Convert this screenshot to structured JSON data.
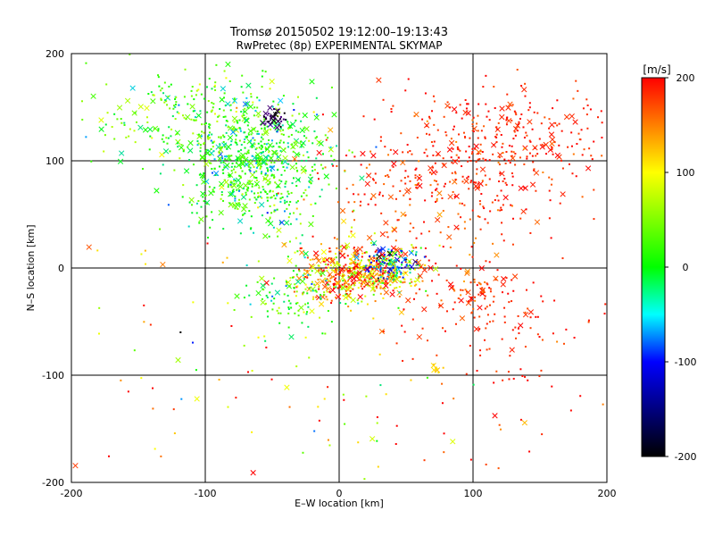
{
  "chart_data": {
    "type": "scatter",
    "title": "Tromsø 20150502 19:12:00–19:13:43",
    "subtitle": "RwPretec (8p) EXPERIMENTAL SKYMAP",
    "xlabel": "E–W location [km]",
    "ylabel": "N–S location [km]",
    "xlim": [
      -200,
      200
    ],
    "ylim": [
      -200,
      200
    ],
    "x_ticks": [
      -200,
      -100,
      0,
      100,
      200
    ],
    "y_ticks": [
      -200,
      -100,
      0,
      100,
      200
    ],
    "grid": true,
    "colorbar": {
      "label": "[m/s]",
      "range": [
        -200,
        200
      ],
      "ticks": [
        200,
        100,
        0,
        -100,
        -200
      ],
      "colors": [
        "#ff0000",
        "#ffff00",
        "#00ff00",
        "#00ffff",
        "#0000ff",
        "#000000"
      ]
    },
    "marker_types": [
      "dot",
      "cross"
    ],
    "clusters": [
      {
        "center": [
          -65,
          95
        ],
        "spread": [
          28,
          30
        ],
        "count": 650,
        "velocity_mean": 10,
        "velocity_spread": 35
      },
      {
        "center": [
          -110,
          140
        ],
        "spread": [
          40,
          22
        ],
        "count": 260,
        "velocity_mean": 25,
        "velocity_spread": 35
      },
      {
        "center": [
          15,
          -5
        ],
        "spread": [
          22,
          14
        ],
        "count": 520,
        "velocity_mean": 140,
        "velocity_spread": 70
      },
      {
        "center": [
          40,
          2
        ],
        "spread": [
          10,
          8
        ],
        "count": 120,
        "velocity_mean": -60,
        "velocity_spread": 70
      },
      {
        "center": [
          120,
          120
        ],
        "spread": [
          45,
          28
        ],
        "count": 320,
        "velocity_mean": 190,
        "velocity_spread": 12
      },
      {
        "center": [
          70,
          70
        ],
        "spread": [
          45,
          28
        ],
        "count": 230,
        "velocity_mean": 180,
        "velocity_spread": 18
      },
      {
        "center": [
          115,
          -45
        ],
        "spread": [
          40,
          28
        ],
        "count": 120,
        "velocity_mean": 190,
        "velocity_spread": 12
      },
      {
        "center": [
          100,
          -22
        ],
        "spread": [
          10,
          10
        ],
        "count": 60,
        "velocity_mean": 180,
        "velocity_spread": 18
      },
      {
        "center": [
          -48,
          140
        ],
        "spread": [
          5,
          4
        ],
        "count": 40,
        "velocity_mean": -170,
        "velocity_spread": 20
      },
      {
        "center": [
          -30,
          -25
        ],
        "spread": [
          20,
          18
        ],
        "count": 120,
        "velocity_mean": 20,
        "velocity_spread": 40
      },
      {
        "center": [
          -120,
          -90
        ],
        "spread": [
          45,
          60
        ],
        "count": 45,
        "velocity_mean": 110,
        "velocity_spread": 100
      },
      {
        "center": [
          30,
          -130
        ],
        "spread": [
          50,
          40
        ],
        "count": 45,
        "velocity_mean": 110,
        "velocity_spread": 90
      },
      {
        "center": [
          140,
          -130
        ],
        "spread": [
          40,
          40
        ],
        "count": 25,
        "velocity_mean": 190,
        "velocity_spread": 20
      },
      {
        "center": [
          72,
          -95
        ],
        "spread": [
          3,
          3
        ],
        "count": 10,
        "velocity_mean": 115,
        "velocity_spread": 15
      }
    ]
  }
}
